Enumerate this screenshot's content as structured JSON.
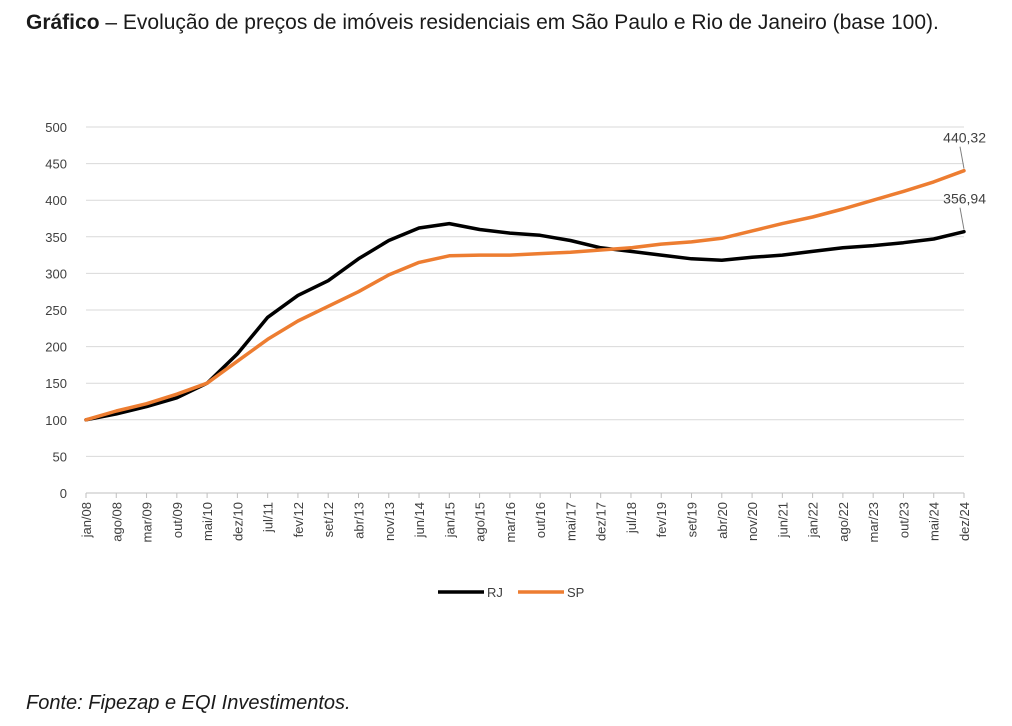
{
  "caption": {
    "label": "Gráfico",
    "separator": " – ",
    "text": "Evolução de preços de imóveis residenciais em São Paulo e Rio de Janeiro (base 100)."
  },
  "source": "Fonte: Fipezap e EQI Investimentos.",
  "colors": {
    "RJ": "#000000",
    "SP": "#ed7d31",
    "grid": "#d9d9d9"
  },
  "chart_data": {
    "type": "line",
    "title": "",
    "x": [
      "jan/08",
      "ago/08",
      "mar/09",
      "out/09",
      "mai/10",
      "dez/10",
      "jul/11",
      "fev/12",
      "set/12",
      "abr/13",
      "nov/13",
      "jun/14",
      "jan/15",
      "ago/15",
      "mar/16",
      "out/16",
      "mai/17",
      "dez/17",
      "jul/18",
      "fev/19",
      "set/19",
      "abr/20",
      "nov/20",
      "jun/21",
      "jan/22",
      "ago/22",
      "mar/23",
      "out/23",
      "mai/24",
      "dez/24"
    ],
    "series": [
      {
        "name": "RJ",
        "values": [
          100,
          108,
          118,
          130,
          150,
          190,
          240,
          270,
          290,
          320,
          345,
          362,
          368,
          360,
          355,
          352,
          345,
          335,
          330,
          325,
          320,
          318,
          322,
          325,
          330,
          335,
          338,
          342,
          347,
          356.94
        ]
      },
      {
        "name": "SP",
        "values": [
          100,
          112,
          122,
          135,
          150,
          180,
          210,
          235,
          255,
          275,
          298,
          315,
          324,
          325,
          325,
          327,
          329,
          332,
          335,
          340,
          343,
          348,
          358,
          368,
          377,
          388,
          400,
          412,
          425,
          440.32
        ]
      }
    ],
    "ylim": [
      0,
      500
    ],
    "yticks": [
      0,
      50,
      100,
      150,
      200,
      250,
      300,
      350,
      400,
      450,
      500
    ],
    "grid": true,
    "legend": "bottom-center",
    "annotations": [
      {
        "series": "SP",
        "text": "440,32"
      },
      {
        "series": "RJ",
        "text": "356,94"
      }
    ]
  }
}
